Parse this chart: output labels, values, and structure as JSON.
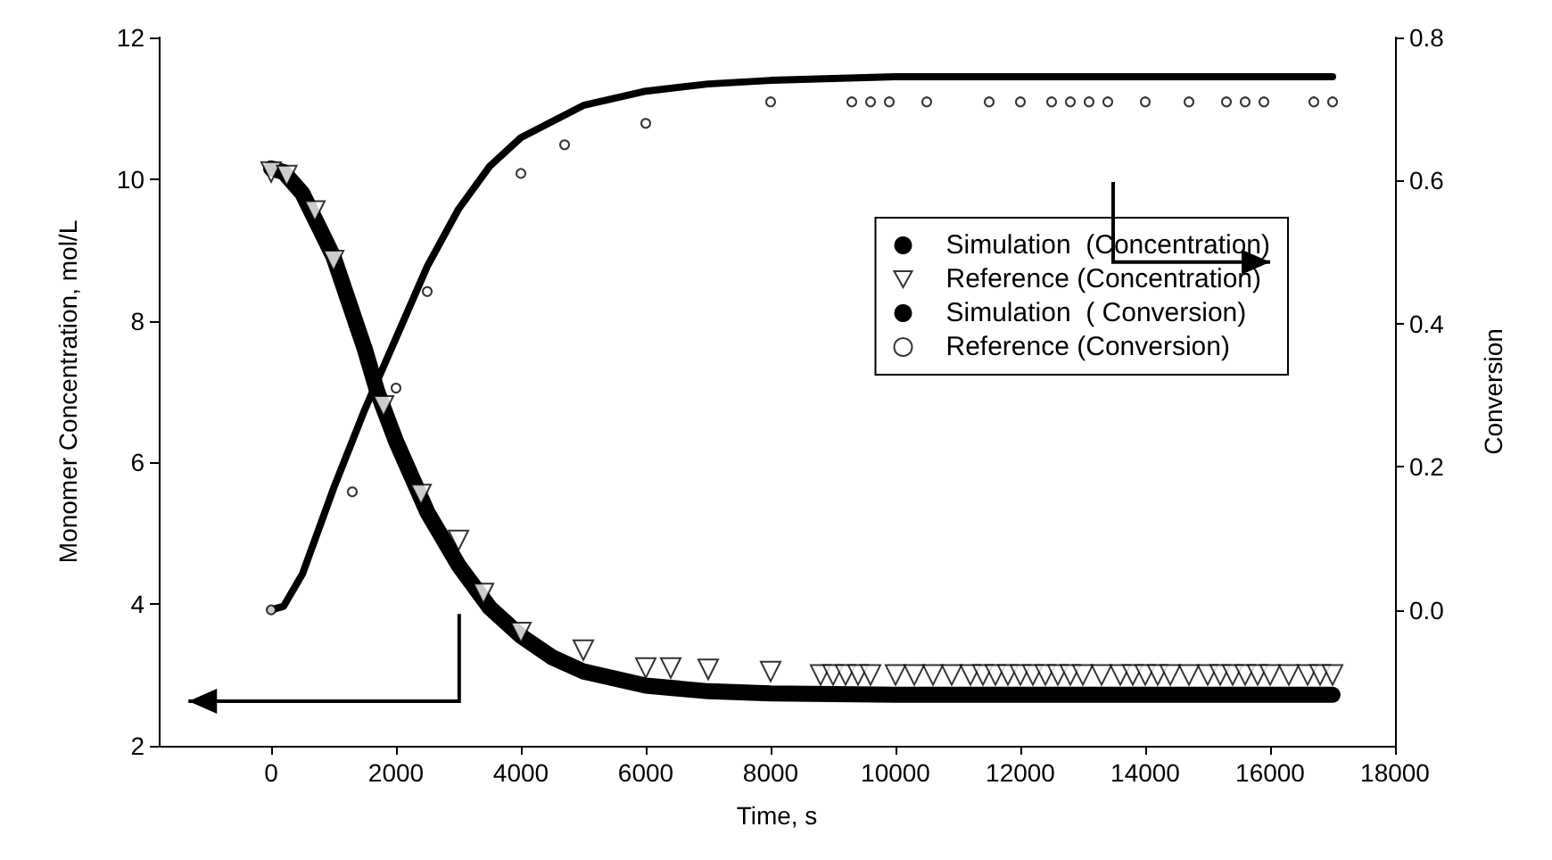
{
  "chart_data": {
    "type": "line",
    "xlabel": "Time, s",
    "ylabel": "Monomer Concentration, mol/L",
    "y2label": "Conversion",
    "xlim": [
      -1800,
      18000
    ],
    "xticks": [
      0,
      2000,
      4000,
      6000,
      8000,
      10000,
      12000,
      14000,
      16000,
      18000
    ],
    "ylim": [
      2,
      12
    ],
    "yticks": [
      2,
      4,
      6,
      8,
      10,
      12
    ],
    "y2lim": [
      -0.19,
      0.8
    ],
    "y2ticks": [
      {
        "value": 0,
        "label": "0.0"
      },
      0.2,
      0.4,
      0.6,
      0.8
    ],
    "grid": false,
    "legend": "right",
    "marker": "none",
    "line_style": "solid",
    "series": [
      {
        "name": "Simulation  (Concentration)",
        "color": "#000000",
        "x": [
          0,
          200,
          500,
          1000,
          1500,
          1700,
          2000,
          2500,
          3000,
          3500,
          4000,
          4500,
          5000,
          6000,
          7000,
          8000,
          10000,
          13000,
          17000
        ],
        "values": [
          10.15,
          10.1,
          9.8,
          8.9,
          7.6,
          7.0,
          6.3,
          5.3,
          4.55,
          3.95,
          3.55,
          3.25,
          3.05,
          2.85,
          2.77,
          2.74,
          2.72,
          2.72,
          2.72
        ]
      },
      {
        "name": "Reference (Concentration)",
        "type": "scatter",
        "marker": "triangle",
        "color": "#000000",
        "x": [
          0,
          250,
          700,
          1000,
          1800,
          2400,
          3000,
          3400,
          4000,
          5000,
          6000,
          6400,
          7000,
          8000,
          8800,
          9000,
          9200,
          9400,
          9600,
          10000,
          10300,
          10600,
          10900,
          11200,
          11400,
          11600,
          11800,
          12000,
          12200,
          12400,
          12600,
          12800,
          13000,
          13300,
          13600,
          13800,
          14000,
          14200,
          14400,
          14700,
          15000,
          15200,
          15400,
          15600,
          15800,
          16000,
          16300,
          16600,
          16800,
          17000
        ],
        "values": [
          10.1,
          10.05,
          9.55,
          8.85,
          6.8,
          5.55,
          4.9,
          4.15,
          3.6,
          3.35,
          3.1,
          3.1,
          3.08,
          3.05,
          3.0,
          3.0,
          3.0,
          3.0,
          3.0,
          3.0,
          3.0,
          3.0,
          3.0,
          3.0,
          3.0,
          3.0,
          3.0,
          3.0,
          3.0,
          3.0,
          3.0,
          3.0,
          3.0,
          3.0,
          3.0,
          3.0,
          3.0,
          3.0,
          3.0,
          3.0,
          3.0,
          3.0,
          3.0,
          3.0,
          3.0,
          3.0,
          3.0,
          3.0,
          3.0,
          3.0
        ]
      },
      {
        "name": "Simulation  ( Conversion)",
        "axis": "y2",
        "color": "#000000",
        "x": [
          0,
          200,
          500,
          1000,
          1500,
          1700,
          2000,
          2500,
          3000,
          3500,
          4000,
          5000,
          6000,
          7000,
          8000,
          10000,
          13000,
          17000
        ],
        "values": [
          0.0,
          0.005,
          0.05,
          0.17,
          0.28,
          0.32,
          0.38,
          0.48,
          0.56,
          0.62,
          0.66,
          0.705,
          0.725,
          0.735,
          0.74,
          0.745,
          0.745,
          0.745
        ]
      },
      {
        "name": "Reference (Conversion)",
        "type": "scatter",
        "marker": "circle",
        "axis": "y2",
        "color": "#000000",
        "x": [
          0,
          1300,
          2000,
          2500,
          4000,
          4700,
          6000,
          8000,
          9300,
          9600,
          9900,
          10500,
          11500,
          12000,
          12500,
          12800,
          13100,
          13400,
          14000,
          14700,
          15300,
          15600,
          15900,
          16700,
          17000
        ],
        "values": [
          0.0,
          0.165,
          0.31,
          0.445,
          0.61,
          0.65,
          0.68,
          0.71,
          0.71,
          0.71,
          0.71,
          0.71,
          0.71,
          0.71,
          0.71,
          0.71,
          0.71,
          0.71,
          0.71,
          0.71,
          0.71,
          0.71,
          0.71,
          0.71,
          0.71
        ]
      }
    ]
  }
}
